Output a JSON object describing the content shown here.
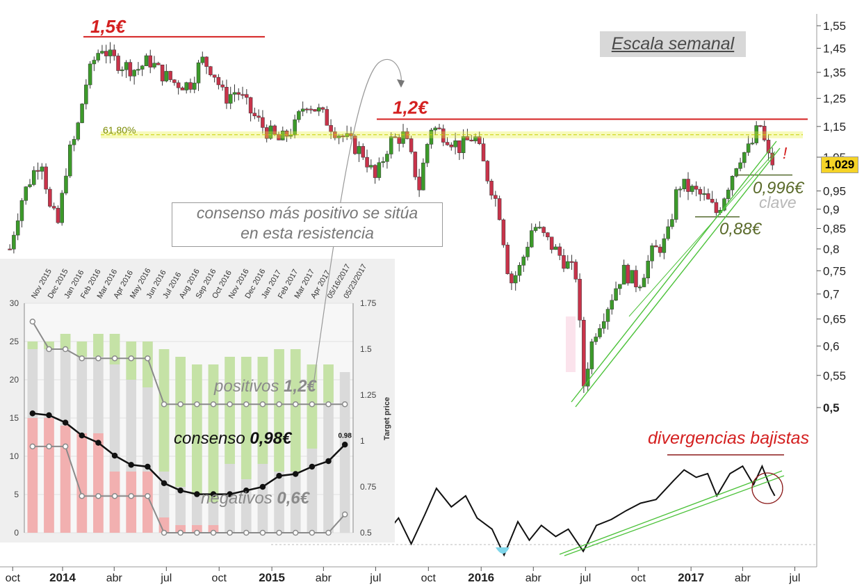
{
  "chart_data": [
    {
      "type": "candlestick",
      "timeframe_label": "Escala semanal",
      "x_tick_labels": [
        "oct",
        "2014",
        "abr",
        "jul",
        "oct",
        "2015",
        "abr",
        "jul",
        "oct",
        "2016",
        "abr",
        "jul",
        "oct",
        "2017",
        "abr",
        "jul"
      ],
      "y_tick_labels": [
        "1,55",
        "1,45",
        "1,35",
        "1,25",
        "1,15",
        "1,05",
        "0,95",
        "0,9",
        "0,85",
        "0,8",
        "0,75",
        "0,7",
        "0,65",
        "0,6",
        "0,55",
        "0,5"
      ],
      "y_ticks": [
        1.55,
        1.45,
        1.35,
        1.25,
        1.15,
        1.05,
        0.95,
        0.9,
        0.85,
        0.8,
        0.75,
        0.7,
        0.65,
        0.6,
        0.55,
        0.5
      ],
      "last_price": "1,029",
      "close_path": [
        {
          "x": "2013-10-01",
          "y": 0.8
        },
        {
          "x": "2013-10-20",
          "y": 0.92
        },
        {
          "x": "2013-11-10",
          "y": 1.0
        },
        {
          "x": "2013-11-25",
          "y": 1.05
        },
        {
          "x": "2013-12-10",
          "y": 0.9
        },
        {
          "x": "2013-12-25",
          "y": 0.86
        },
        {
          "x": "2014-01-10",
          "y": 1.05
        },
        {
          "x": "2014-01-25",
          "y": 1.12
        },
        {
          "x": "2014-02-10",
          "y": 1.3
        },
        {
          "x": "2014-02-25",
          "y": 1.4
        },
        {
          "x": "2014-03-10",
          "y": 1.46
        },
        {
          "x": "2014-03-25",
          "y": 1.41
        },
        {
          "x": "2014-04-15",
          "y": 1.38
        },
        {
          "x": "2014-05-10",
          "y": 1.36
        },
        {
          "x": "2014-06-01",
          "y": 1.4
        },
        {
          "x": "2014-06-20",
          "y": 1.35
        },
        {
          "x": "2014-07-15",
          "y": 1.31
        },
        {
          "x": "2014-08-10",
          "y": 1.3
        },
        {
          "x": "2014-09-01",
          "y": 1.4
        },
        {
          "x": "2014-09-20",
          "y": 1.36
        },
        {
          "x": "2014-10-10",
          "y": 1.25
        },
        {
          "x": "2014-11-01",
          "y": 1.28
        },
        {
          "x": "2014-11-25",
          "y": 1.2
        },
        {
          "x": "2014-12-20",
          "y": 1.14
        },
        {
          "x": "2015-01-15",
          "y": 1.1
        },
        {
          "x": "2015-02-10",
          "y": 1.15
        },
        {
          "x": "2015-03-01",
          "y": 1.24
        },
        {
          "x": "2015-03-25",
          "y": 1.2
        },
        {
          "x": "2015-04-20",
          "y": 1.14
        },
        {
          "x": "2015-05-15",
          "y": 1.1
        },
        {
          "x": "2015-06-10",
          "y": 1.06
        },
        {
          "x": "2015-07-01",
          "y": 0.98
        },
        {
          "x": "2015-07-25",
          "y": 1.1
        },
        {
          "x": "2015-08-20",
          "y": 1.12
        },
        {
          "x": "2015-09-15",
          "y": 0.96
        },
        {
          "x": "2015-10-05",
          "y": 1.15
        },
        {
          "x": "2015-11-01",
          "y": 1.12
        },
        {
          "x": "2015-11-25",
          "y": 1.08
        },
        {
          "x": "2015-12-20",
          "y": 1.12
        },
        {
          "x": "2016-01-10",
          "y": 1.0
        },
        {
          "x": "2016-02-01",
          "y": 0.9
        },
        {
          "x": "2016-02-20",
          "y": 0.72
        },
        {
          "x": "2016-03-10",
          "y": 0.76
        },
        {
          "x": "2016-04-01",
          "y": 0.86
        },
        {
          "x": "2016-04-25",
          "y": 0.82
        },
        {
          "x": "2016-05-20",
          "y": 0.78
        },
        {
          "x": "2016-06-15",
          "y": 0.74
        },
        {
          "x": "2016-06-27",
          "y": 0.53
        },
        {
          "x": "2016-07-15",
          "y": 0.62
        },
        {
          "x": "2016-08-10",
          "y": 0.68
        },
        {
          "x": "2016-09-05",
          "y": 0.75
        },
        {
          "x": "2016-10-01",
          "y": 0.72
        },
        {
          "x": "2016-10-25",
          "y": 0.79
        },
        {
          "x": "2016-11-20",
          "y": 0.82
        },
        {
          "x": "2016-12-10",
          "y": 0.97
        },
        {
          "x": "2017-01-05",
          "y": 0.95
        },
        {
          "x": "2017-01-25",
          "y": 0.93
        },
        {
          "x": "2017-02-15",
          "y": 0.89
        },
        {
          "x": "2017-03-05",
          "y": 0.96
        },
        {
          "x": "2017-03-25",
          "y": 1.05
        },
        {
          "x": "2017-04-15",
          "y": 1.08
        },
        {
          "x": "2017-05-01",
          "y": 1.16
        },
        {
          "x": "2017-05-15",
          "y": 1.05
        },
        {
          "x": "2017-05-25",
          "y": 1.029
        }
      ],
      "lines": [
        {
          "label": "1,5€",
          "y": 1.5
        },
        {
          "label": "1,2€",
          "y": 1.175
        },
        {
          "label": "61,80%",
          "y": 1.122
        },
        {
          "label": "0,996€",
          "y": 0.996
        },
        {
          "label": "0,88€",
          "y": 0.88
        }
      ],
      "annotations": [
        "!",
        "clave",
        "divergencias bajistas",
        "consenso más positivo se sitúa",
        "en esta resistencia"
      ],
      "indicator_path": [
        {
          "x": "2015-07-01",
          "y": 0.55
        },
        {
          "x": "2015-07-20",
          "y": 0.3
        },
        {
          "x": "2015-08-10",
          "y": 0.5
        },
        {
          "x": "2015-09-01",
          "y": 0.15
        },
        {
          "x": "2015-09-25",
          "y": 0.55
        },
        {
          "x": "2015-10-15",
          "y": 0.9
        },
        {
          "x": "2015-11-10",
          "y": 0.65
        },
        {
          "x": "2015-12-05",
          "y": 0.8
        },
        {
          "x": "2015-12-25",
          "y": 0.5
        },
        {
          "x": "2016-01-20",
          "y": 0.35
        },
        {
          "x": "2016-02-10",
          "y": 0.0
        },
        {
          "x": "2016-03-05",
          "y": 0.45
        },
        {
          "x": "2016-03-25",
          "y": 0.2
        },
        {
          "x": "2016-04-15",
          "y": 0.4
        },
        {
          "x": "2016-05-10",
          "y": 0.25
        },
        {
          "x": "2016-06-01",
          "y": 0.35
        },
        {
          "x": "2016-06-27",
          "y": 0.05
        },
        {
          "x": "2016-07-20",
          "y": 0.4
        },
        {
          "x": "2016-08-15",
          "y": 0.48
        },
        {
          "x": "2016-09-10",
          "y": 0.6
        },
        {
          "x": "2016-10-05",
          "y": 0.7
        },
        {
          "x": "2016-11-01",
          "y": 0.75
        },
        {
          "x": "2016-12-01",
          "y": 1.0
        },
        {
          "x": "2016-12-20",
          "y": 1.15
        },
        {
          "x": "2017-01-10",
          "y": 1.05
        },
        {
          "x": "2017-01-30",
          "y": 1.1
        },
        {
          "x": "2017-02-15",
          "y": 0.8
        },
        {
          "x": "2017-03-10",
          "y": 1.1
        },
        {
          "x": "2017-04-01",
          "y": 1.2
        },
        {
          "x": "2017-04-20",
          "y": 0.95
        },
        {
          "x": "2017-05-05",
          "y": 1.2
        },
        {
          "x": "2017-05-20",
          "y": 0.9
        },
        {
          "x": "2017-05-27",
          "y": 0.8
        }
      ]
    },
    {
      "type": "bar+line",
      "categories": [
        "Nov 2015",
        "Dec 2015",
        "Jan 2016",
        "Feb 2016",
        "Mar 2016",
        "Apr 2016",
        "May 2016",
        "Jun 2016",
        "Jul 2016",
        "Aug 2016",
        "Sep 2016",
        "Oct 2016",
        "Nov 2016",
        "Dec 2016",
        "Jan 2017",
        "Feb 2017",
        "Mar 2017",
        "Apr 2017",
        "05/16/2017",
        "05/23/2017"
      ],
      "bars_total": [
        25,
        25,
        26,
        25,
        26,
        26,
        25,
        25,
        24,
        23,
        22,
        22,
        23,
        23,
        23,
        24,
        24,
        22,
        22,
        21
      ],
      "bars_positive": [
        1,
        1,
        2,
        2,
        3,
        4,
        5,
        6,
        16,
        17,
        17,
        18,
        14,
        16,
        14,
        16,
        16,
        11,
        5,
        0
      ],
      "bars_negative": [
        15,
        15,
        14,
        13,
        13,
        8,
        8,
        8,
        2,
        1,
        1,
        1,
        0,
        0,
        0,
        0,
        0,
        0,
        0,
        0
      ],
      "y_left_ticks": [
        0,
        5,
        10,
        15,
        20,
        25,
        30
      ],
      "y_right_ticks": [
        "0.5",
        "0.75",
        "1",
        "1.25",
        "1.5",
        "1.75"
      ],
      "y_right_label": "Target price",
      "ylim_left": [
        0,
        30
      ],
      "ylim_right": [
        0.5,
        1.75
      ],
      "series": [
        {
          "name": "positivos",
          "values": [
            1.65,
            1.5,
            1.5,
            1.45,
            1.45,
            1.45,
            1.45,
            1.45,
            1.2,
            1.2,
            1.2,
            1.2,
            1.2,
            1.2,
            1.2,
            1.2,
            1.2,
            1.2,
            1.2,
            1.2
          ]
        },
        {
          "name": "consenso",
          "values": [
            1.15,
            1.14,
            1.1,
            1.03,
            0.99,
            0.92,
            0.87,
            0.86,
            0.77,
            0.73,
            0.71,
            0.71,
            0.71,
            0.73,
            0.75,
            0.81,
            0.82,
            0.86,
            0.89,
            0.98
          ]
        },
        {
          "name": "negativos",
          "values": [
            0.97,
            0.97,
            0.97,
            0.7,
            0.7,
            0.7,
            0.7,
            0.7,
            0.5,
            0.5,
            0.5,
            0.5,
            0.5,
            0.5,
            0.5,
            0.5,
            0.5,
            0.5,
            0.5,
            0.6
          ]
        }
      ],
      "last_value_label": "0.98",
      "overlay_labels": [
        {
          "text": "positivos ",
          "value": "1,2€"
        },
        {
          "text": "consenso ",
          "value": "0,98€"
        },
        {
          "text": "negativos ",
          "value": "0,6€"
        }
      ]
    }
  ],
  "colors": {
    "up": "#3c9a2a",
    "down": "#c8334a",
    "resistance": "#d42020",
    "fib": "#e8f040",
    "trend": "#4cc23a",
    "support_text": "#5a6a2a",
    "pos_bar": "#c5e2a6",
    "neg_bar": "#f2b0b0",
    "bar_gray": "#dadada"
  }
}
